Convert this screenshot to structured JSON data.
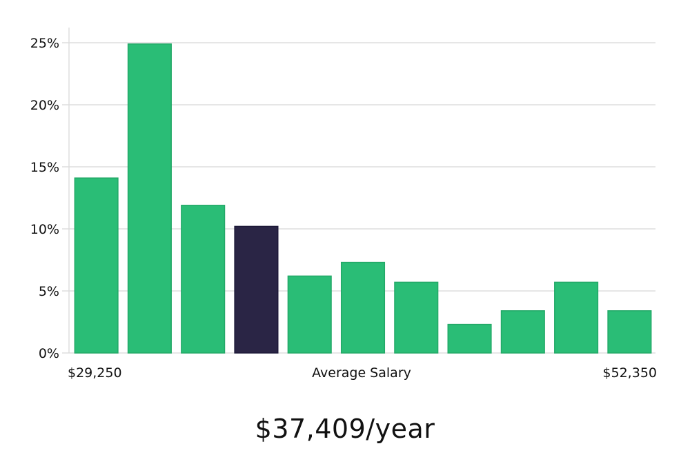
{
  "chart_data": {
    "type": "bar",
    "categories": [
      "1",
      "2",
      "3",
      "4",
      "5",
      "6",
      "7",
      "8",
      "9",
      "10",
      "11"
    ],
    "values": [
      14.1,
      24.9,
      11.9,
      10.2,
      6.2,
      7.3,
      5.7,
      2.3,
      3.4,
      5.7,
      3.4
    ],
    "highlight_index": 3,
    "xlabel": "Average Salary",
    "x_min_label": "$29,250",
    "x_max_label": "$52,350",
    "ylim": [
      0,
      25
    ],
    "yticks": [
      {
        "value": 0,
        "label": "0%"
      },
      {
        "value": 5,
        "label": "5%"
      },
      {
        "value": 10,
        "label": "10%"
      },
      {
        "value": 15,
        "label": "15%"
      },
      {
        "value": 20,
        "label": "20%"
      },
      {
        "value": 25,
        "label": "25%"
      }
    ],
    "grid": true,
    "colors": {
      "bar": "#2abd76",
      "bar_highlight": "#2a2545",
      "grid": "#dddddd"
    }
  },
  "headline": "$37,409/year"
}
